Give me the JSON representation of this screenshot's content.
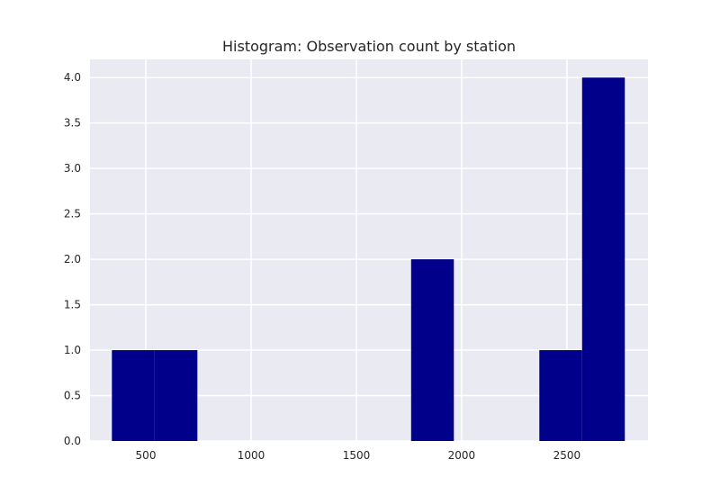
{
  "chart_data": {
    "type": "bar",
    "subtype": "histogram",
    "title": "Histogram: Observation count by station",
    "xlabel": "",
    "ylabel": "",
    "xlim": [
      235,
      2885
    ],
    "ylim": [
      0,
      4.2
    ],
    "x_ticks": [
      500,
      1000,
      1500,
      2000,
      2500
    ],
    "x_tick_labels": [
      "500",
      "1000",
      "1500",
      "2000",
      "2500"
    ],
    "y_ticks": [
      0,
      0.5,
      1,
      1.5,
      2,
      2.5,
      3,
      3.5,
      4
    ],
    "y_tick_labels": [
      "0.0",
      "0.5",
      "1.0",
      "1.5",
      "2.0",
      "2.5",
      "3.0",
      "3.5",
      "4.0"
    ],
    "bins": [
      {
        "start": 339,
        "end": 542,
        "count": 1
      },
      {
        "start": 542,
        "end": 745,
        "count": 1
      },
      {
        "start": 745,
        "end": 948,
        "count": 0
      },
      {
        "start": 948,
        "end": 1151,
        "count": 0
      },
      {
        "start": 1151,
        "end": 1354,
        "count": 0
      },
      {
        "start": 1354,
        "end": 1557,
        "count": 0
      },
      {
        "start": 1557,
        "end": 1760,
        "count": 0
      },
      {
        "start": 1760,
        "end": 1963,
        "count": 2
      },
      {
        "start": 1963,
        "end": 2166,
        "count": 0
      },
      {
        "start": 2166,
        "end": 2369,
        "count": 0
      },
      {
        "start": 2369,
        "end": 2572,
        "count": 1
      },
      {
        "start": 2572,
        "end": 2775,
        "count": 4
      }
    ],
    "grid": true,
    "legend": "none",
    "colors": {
      "bar": "#00008b",
      "plot_background": "#eaeaf2",
      "grid": "#ffffff",
      "text": "#262626"
    }
  }
}
